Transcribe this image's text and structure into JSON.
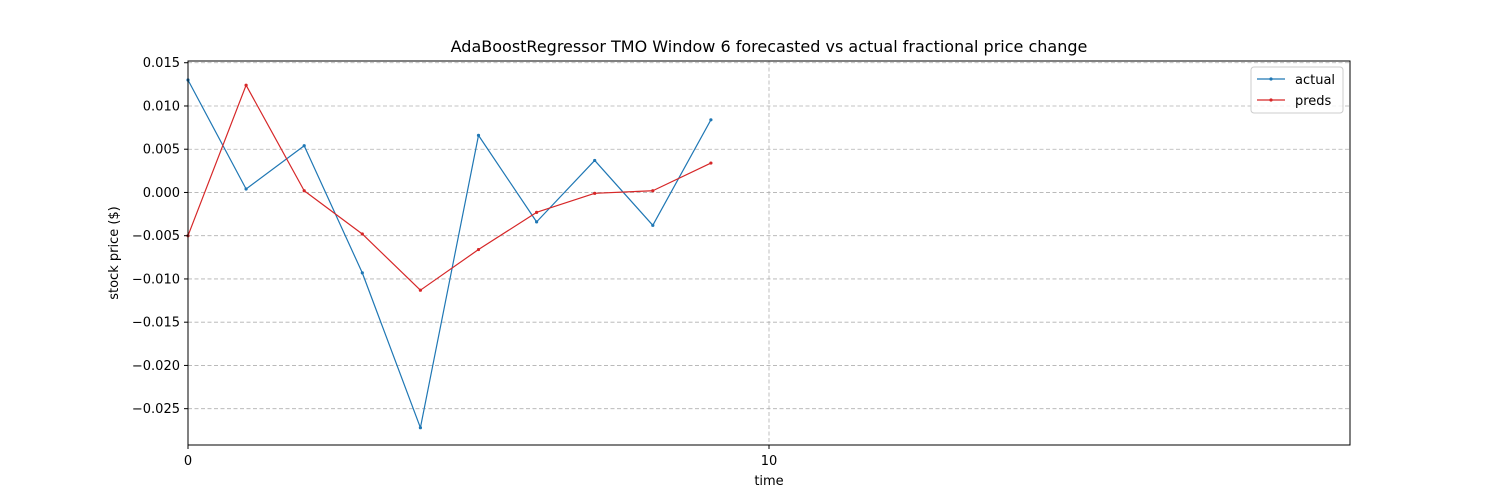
{
  "chart_data": {
    "type": "line",
    "title": "AdaBoostRegressor TMO Window 6 forecasted vs actual fractional price change",
    "xlabel": "time",
    "ylabel": "stock price ($)",
    "xlim": [
      0,
      20
    ],
    "ylim": [
      -0.0292,
      0.0152
    ],
    "xticks": [
      0,
      10
    ],
    "xtick_labels": [
      "0",
      "10"
    ],
    "yticks": [
      0.015,
      0.01,
      0.005,
      0.0,
      -0.005,
      -0.01,
      -0.015,
      -0.02,
      -0.025
    ],
    "ytick_labels": [
      "0.015",
      "0.010",
      "0.005",
      "0.000",
      "−0.005",
      "−0.010",
      "−0.015",
      "−0.020",
      "−0.025"
    ],
    "grid": true,
    "legend_position": "top-right",
    "x": [
      0,
      1,
      2,
      3,
      4,
      5,
      6,
      7,
      8,
      9
    ],
    "series": [
      {
        "name": "actual",
        "color": "#1f77b4",
        "values": [
          0.013,
          0.0004,
          0.0054,
          -0.0093,
          -0.0272,
          0.0066,
          -0.0034,
          0.0037,
          -0.0038,
          0.0084
        ]
      },
      {
        "name": "preds",
        "color": "#d62728",
        "values": [
          -0.005,
          0.0124,
          0.0002,
          -0.0048,
          -0.0113,
          -0.0066,
          -0.0023,
          -0.0001,
          0.0002,
          0.0034
        ]
      }
    ]
  }
}
